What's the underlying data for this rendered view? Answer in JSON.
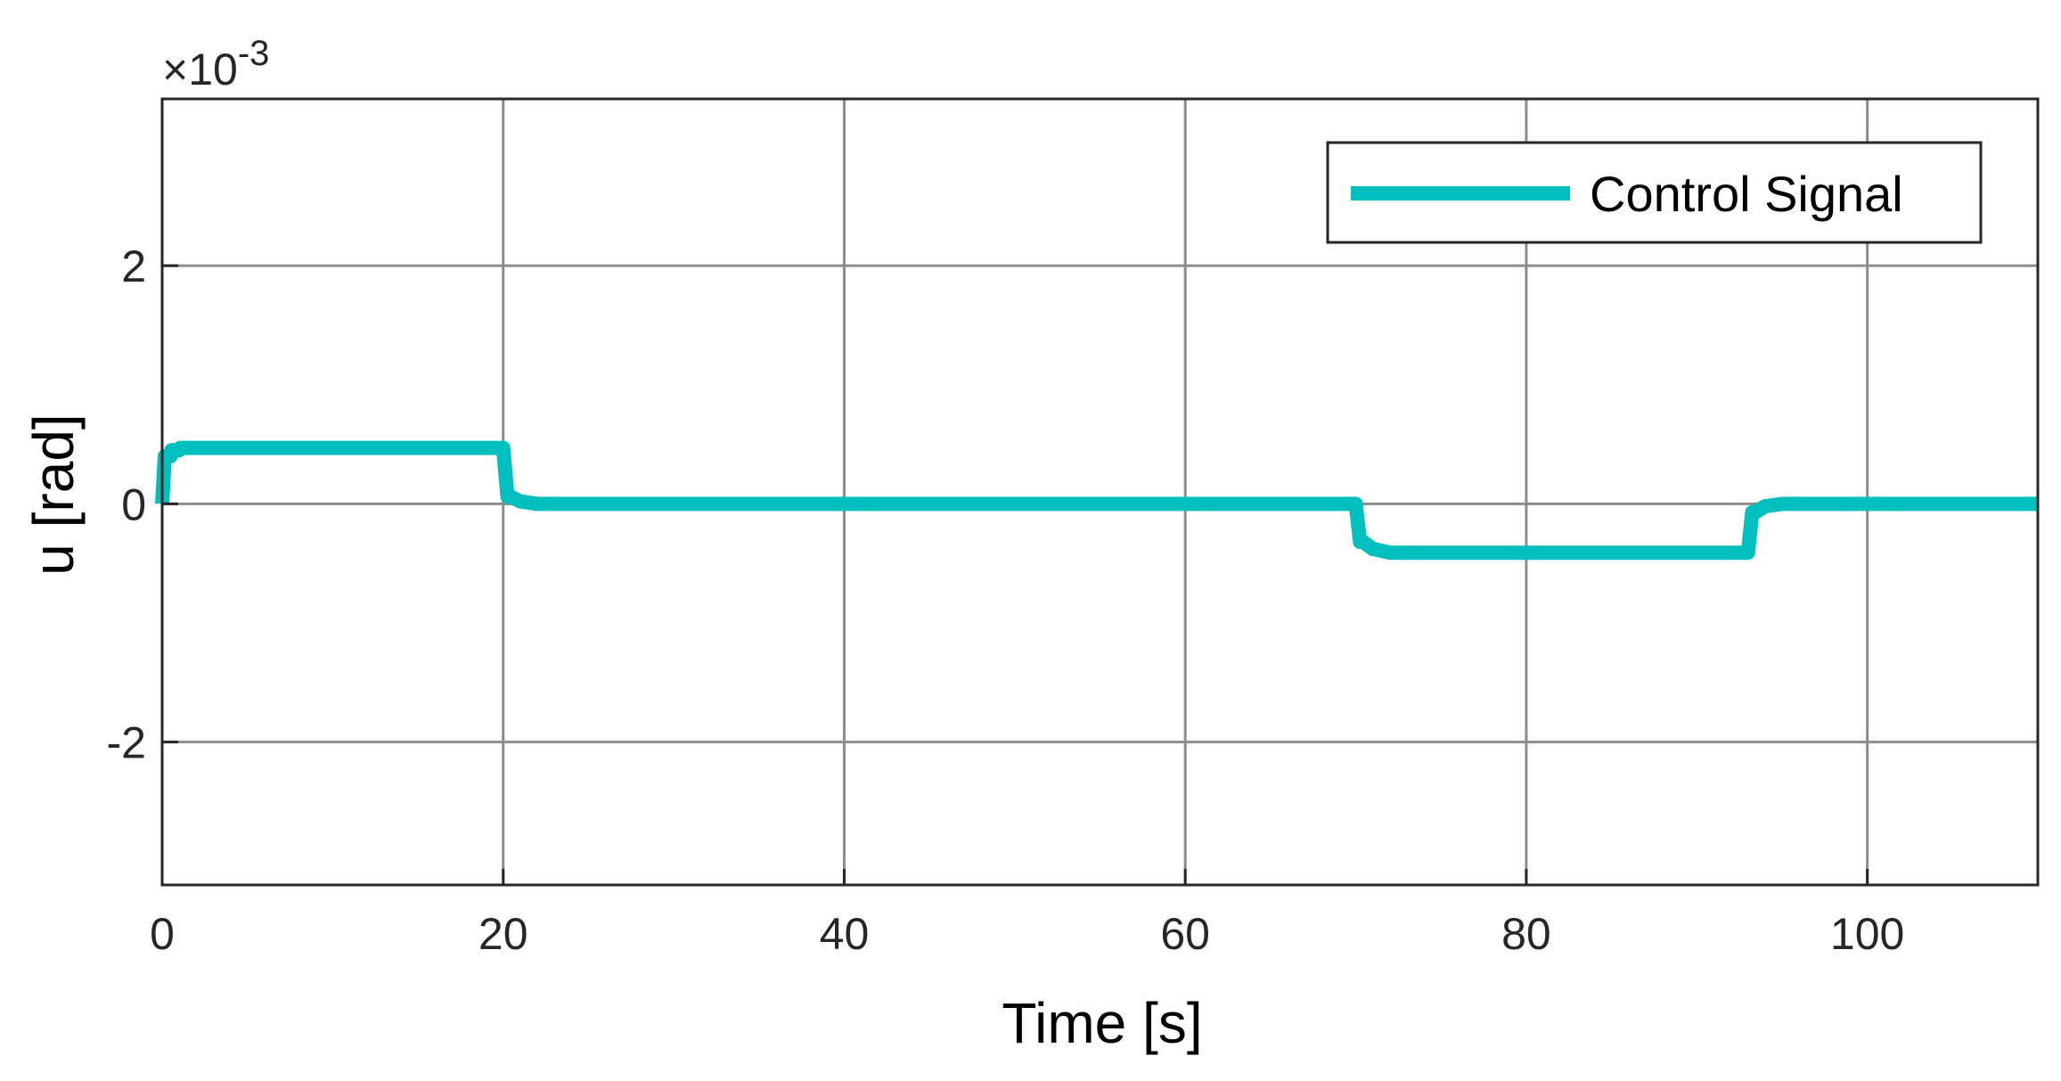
{
  "chart_data": {
    "type": "line",
    "title": "",
    "xlabel": "Time [s]",
    "ylabel": "u [rad]",
    "xlim": [
      0,
      110
    ],
    "ylim": [
      -3.2,
      3.4
    ],
    "y_multiplier": "×10",
    "y_multiplier_exp": "-3",
    "grid": true,
    "legend_position": "top-right",
    "x_ticks": [
      {
        "value": 0,
        "label": "0"
      },
      {
        "value": 20,
        "label": "20"
      },
      {
        "value": 40,
        "label": "40"
      },
      {
        "value": 60,
        "label": "60"
      },
      {
        "value": 80,
        "label": "80"
      },
      {
        "value": 100,
        "label": "100"
      }
    ],
    "y_ticks": [
      {
        "value": -2,
        "label": "-2"
      },
      {
        "value": 0,
        "label": "0"
      },
      {
        "value": 2,
        "label": "2"
      }
    ],
    "series": [
      {
        "name": "Control Signal",
        "color": "#00bfbf",
        "x": [
          0,
          0.15,
          0.5,
          0.55,
          1.0,
          1.05,
          1.5,
          20.0,
          20.25,
          20.45,
          21.0,
          21.05,
          22.0,
          70.0,
          70.25,
          70.45,
          71.0,
          71.05,
          72.0,
          93.0,
          93.25,
          93.45,
          94.0,
          94.05,
          95.0,
          110.0
        ],
        "y": [
          0,
          0.4,
          0.4,
          0.45,
          0.45,
          0.47,
          0.47,
          0.47,
          0.06,
          0.06,
          0.02,
          0.02,
          0,
          0,
          -0.32,
          -0.32,
          -0.38,
          -0.38,
          -0.41,
          -0.41,
          -0.07,
          -0.07,
          -0.02,
          -0.02,
          0,
          0
        ]
      }
    ]
  }
}
